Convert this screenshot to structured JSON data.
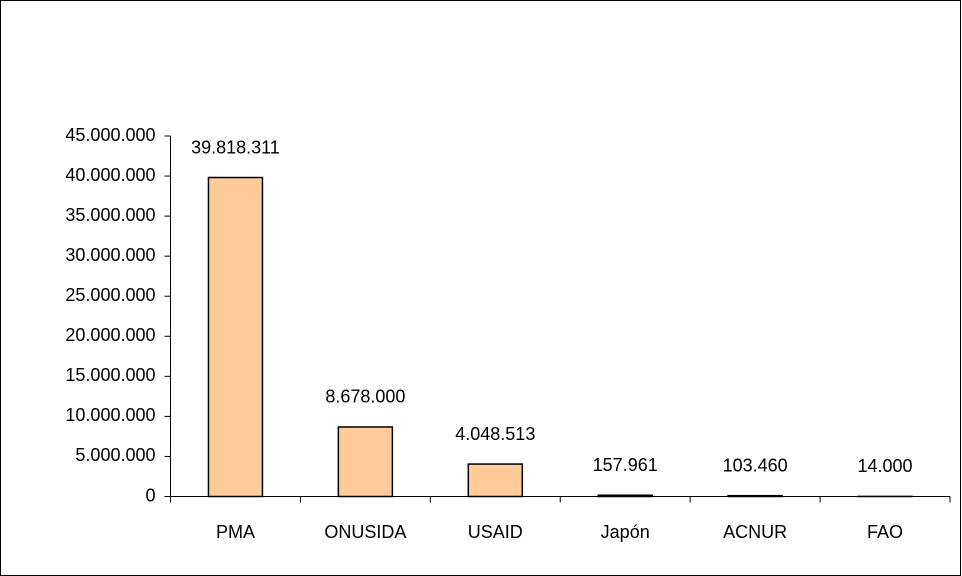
{
  "chart_data": {
    "type": "bar",
    "categories": [
      "PMA",
      "ONUSIDA",
      "USAID",
      "Japón",
      "ACNUR",
      "FAO"
    ],
    "values": [
      39818311,
      8678000,
      4048513,
      157961,
      103460,
      14000
    ],
    "value_labels": [
      "39.818.311",
      "8.678.000",
      "4.048.513",
      "157.961",
      "103.460",
      "14.000"
    ],
    "color": "#ffcc99",
    "ylim": [
      0,
      45000000
    ],
    "yticks": [
      0,
      {
        "value": 5000000,
        "label": "5.000.000"
      },
      {
        "value": 10000000,
        "label": "10.000.000"
      },
      {
        "value": 15000000,
        "label": "15.000.000"
      },
      {
        "value": 20000000,
        "label": "20.000.000"
      },
      {
        "value": 25000000,
        "label": "25.000.000"
      },
      {
        "value": 30000000,
        "label": "30.000.000"
      },
      {
        "value": 35000000,
        "label": "35.000.000"
      },
      {
        "value": 40000000,
        "label": "40.000.000"
      },
      {
        "value": 45000000,
        "label": "45.000.000"
      }
    ],
    "grid": false
  }
}
